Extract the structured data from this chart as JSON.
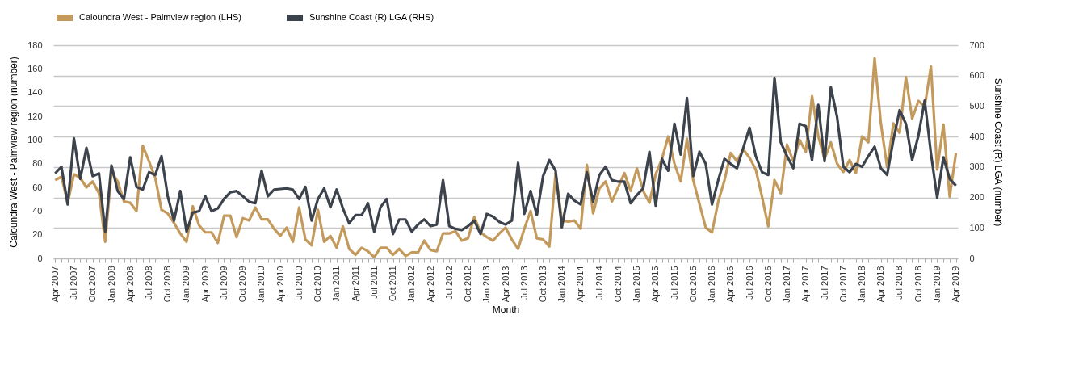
{
  "chart_data": {
    "type": "line",
    "xlabel": "Month",
    "ylabel": "Caloundra West - Palmview region (number)",
    "y2label": "Sunshine Coast (R) LGA (number)",
    "categories": [
      "Apr 2007",
      null,
      null,
      "Jul 2007",
      null,
      null,
      "Oct 2007",
      null,
      null,
      "Jan 2008",
      null,
      null,
      "Apr 2008",
      null,
      null,
      "Jul 2008",
      null,
      null,
      "Oct 2008",
      null,
      null,
      "Jan 2009",
      null,
      null,
      "Apr 2009",
      null,
      null,
      "Jul 2009",
      null,
      null,
      "Oct 2009",
      null,
      null,
      "Jan 2010",
      null,
      null,
      "Apr 2010",
      null,
      null,
      "Jul 2010",
      null,
      null,
      "Oct 2010",
      null,
      null,
      "Jan 2011",
      null,
      null,
      "Apr 2011",
      null,
      null,
      "Jul 2011",
      null,
      null,
      "Oct 2011",
      null,
      null,
      "Jan 2012",
      null,
      null,
      "Apr 2012",
      null,
      null,
      "Jul 2012",
      null,
      null,
      "Oct 2012",
      null,
      null,
      "Jan 2013",
      null,
      null,
      "Apr 2013",
      null,
      null,
      "Jul 2013",
      null,
      null,
      "Oct 2013",
      null,
      null,
      "Jan 2014",
      null,
      null,
      "Apr 2014",
      null,
      null,
      "Jul 2014",
      null,
      null,
      "Oct 2014",
      null,
      null,
      "Jan 2015",
      null,
      null,
      "Apr 2015",
      null,
      null,
      "Jul 2015",
      null,
      null,
      "Oct 2015",
      null,
      null,
      "Jan 2016",
      null,
      null,
      "Apr 2016",
      null,
      null,
      "Jul 2016",
      null,
      null,
      "Oct 2016",
      null,
      null,
      "Jan 2017",
      null,
      null,
      "Apr 2017",
      null,
      null,
      "Jul 2017",
      null,
      null,
      "Oct 2017",
      null,
      null,
      "Jan 2018",
      null,
      null,
      "Apr 2018",
      null,
      null,
      "Jul 2018",
      null,
      null,
      "Oct 2018",
      null,
      null,
      "Jan 2019",
      null,
      null,
      "Apr 2019"
    ],
    "series": [
      {
        "name": "Caloundra West - Palmview region (LHS)",
        "color": "#c49a5c",
        "values": [
          66,
          69,
          47,
          71,
          68,
          60,
          65,
          55,
          14,
          73,
          65,
          48,
          47,
          40,
          95,
          82,
          68,
          41,
          38,
          30,
          21,
          14,
          44,
          28,
          22,
          22,
          13,
          36,
          36,
          18,
          34,
          32,
          43,
          33,
          33,
          25,
          19,
          26,
          14,
          43,
          16,
          11,
          41,
          14,
          19,
          9,
          27,
          8,
          3,
          9,
          6,
          1,
          9,
          9,
          3,
          8,
          2,
          5,
          5,
          15,
          7,
          6,
          21,
          21,
          23,
          15,
          17,
          35,
          22,
          18,
          15,
          21,
          26,
          16,
          8,
          25,
          40,
          17,
          16,
          10,
          72,
          32,
          31,
          32,
          25,
          79,
          38,
          59,
          65,
          48,
          60,
          72,
          57,
          76,
          57,
          47,
          71,
          84,
          103,
          80,
          65,
          101,
          66,
          46,
          26,
          22,
          48,
          66,
          89,
          82,
          92,
          85,
          75,
          52,
          27,
          66,
          55,
          96,
          82,
          100,
          90,
          137,
          103,
          84,
          98,
          80,
          73,
          83,
          72,
          103,
          98,
          169,
          114,
          77,
          114,
          106,
          153,
          118,
          133,
          128,
          162,
          75,
          113,
          52,
          89
        ]
      },
      {
        "name": "Sunshine Coast (R) LGA (RHS)",
        "color": "#3d434c",
        "axis": "y2",
        "values": [
          279,
          301,
          177,
          394,
          261,
          363,
          270,
          279,
          88,
          305,
          221,
          195,
          332,
          235,
          226,
          283,
          274,
          336,
          204,
          124,
          221,
          88,
          150,
          155,
          204,
          155,
          164,
          195,
          217,
          221,
          204,
          186,
          181,
          288,
          204,
          226,
          228,
          230,
          226,
          195,
          235,
          124,
          195,
          230,
          168,
          226,
          164,
          115,
          142,
          142,
          181,
          88,
          168,
          195,
          80,
          128,
          128,
          88,
          111,
          128,
          106,
          111,
          257,
          106,
          97,
          93,
          106,
          124,
          80,
          146,
          137,
          120,
          111,
          124,
          314,
          146,
          221,
          142,
          270,
          323,
          288,
          102,
          212,
          190,
          177,
          283,
          186,
          274,
          301,
          257,
          252,
          252,
          181,
          208,
          230,
          350,
          173,
          327,
          288,
          442,
          341,
          527,
          270,
          350,
          310,
          177,
          257,
          327,
          310,
          296,
          363,
          429,
          336,
          283,
          274,
          593,
          381,
          336,
          296,
          442,
          434,
          323,
          504,
          319,
          562,
          465,
          301,
          283,
          310,
          301,
          336,
          367,
          296,
          274,
          389,
          487,
          442,
          323,
          403,
          518,
          345,
          199,
          332,
          261,
          239
        ]
      }
    ],
    "ylim": [
      0,
      180
    ],
    "yticks": [
      0,
      20,
      40,
      60,
      80,
      100,
      120,
      140,
      160,
      180
    ],
    "y2lim": [
      0,
      700
    ],
    "y2ticks": [
      0,
      100,
      200,
      300,
      400,
      500,
      600,
      700
    ],
    "grid": true,
    "legend": "top"
  }
}
